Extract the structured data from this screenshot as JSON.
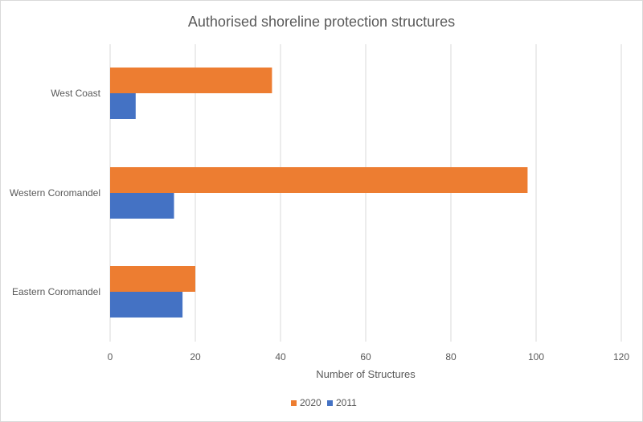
{
  "chart_data": {
    "type": "bar",
    "orientation": "horizontal",
    "title": "Authorised shoreline protection structures",
    "xlabel": "Number of Structures",
    "ylabel": "",
    "categories": [
      "West Coast",
      "Western Coromandel",
      "Eastern Coromandel"
    ],
    "series": [
      {
        "name": "2020",
        "color": "#ED7D31",
        "values": [
          38,
          98,
          20
        ]
      },
      {
        "name": "2011",
        "color": "#4472C4",
        "values": [
          6,
          15,
          17
        ]
      }
    ],
    "xlim": [
      0,
      120
    ],
    "xticks": [
      "0",
      "20",
      "40",
      "60",
      "80",
      "100",
      "120"
    ],
    "grid": true,
    "legend": "bottom"
  }
}
